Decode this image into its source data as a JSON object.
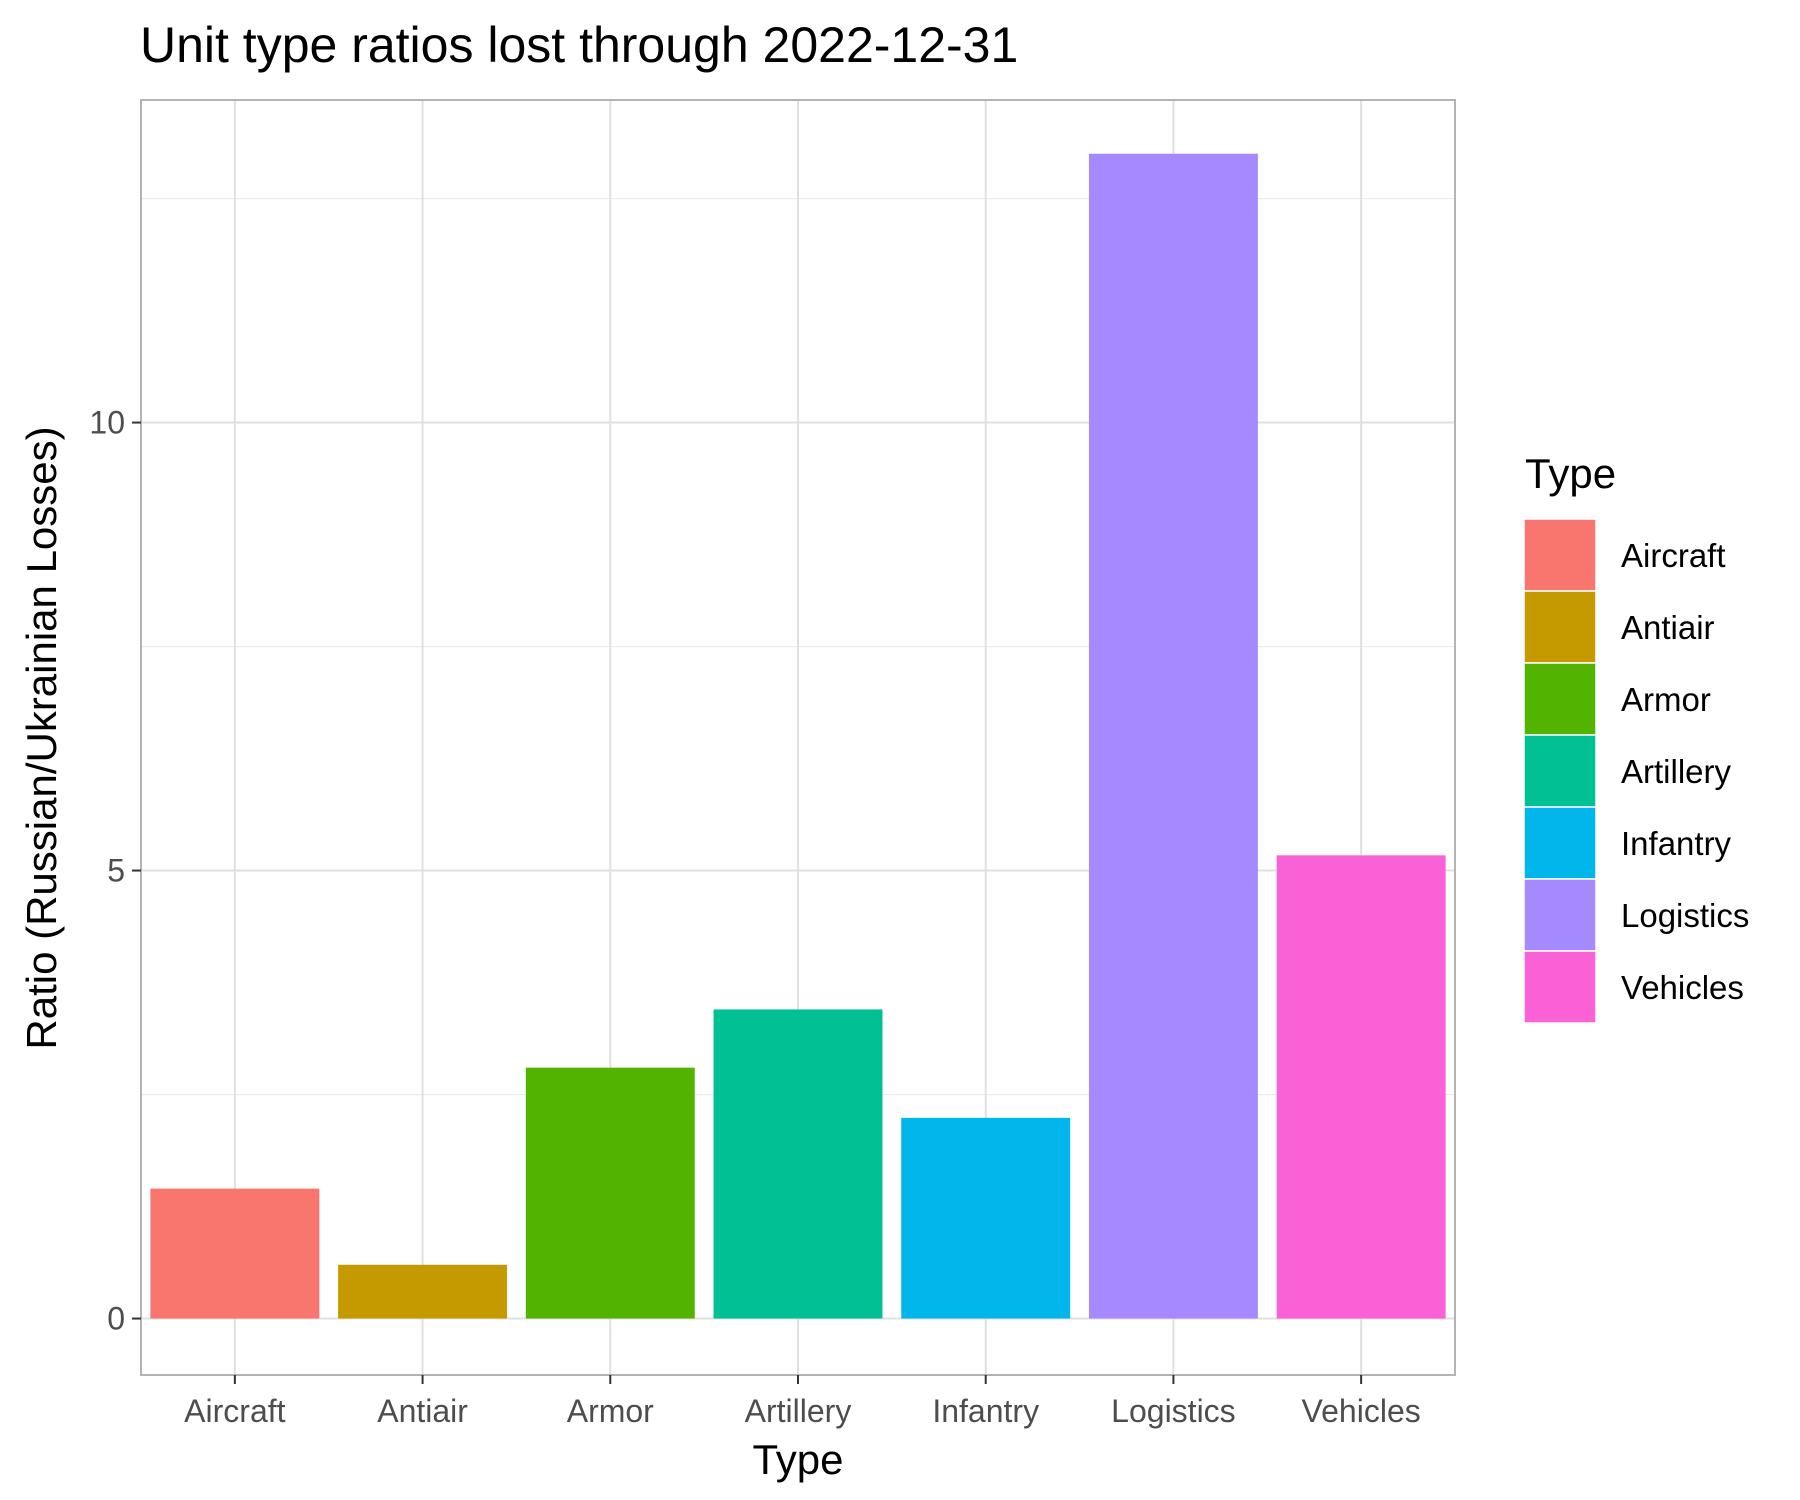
{
  "chart_data": {
    "type": "bar",
    "title": "Unit type ratios lost through 2022-12-31",
    "xlabel": "Type",
    "ylabel": "Ratio (Russian/Ukrainian Losses)",
    "categories": [
      "Aircraft",
      "Antiair",
      "Armor",
      "Artillery",
      "Infantry",
      "Logistics",
      "Vehicles"
    ],
    "values": [
      1.45,
      0.6,
      2.8,
      3.45,
      2.24,
      13.0,
      5.17
    ],
    "colors": [
      "#F8766D",
      "#C49A00",
      "#53B400",
      "#00C094",
      "#00B6EB",
      "#A58AFF",
      "#FB61D7"
    ],
    "ylim": [
      -0.63,
      13.6
    ],
    "y_ticks": [
      0,
      5,
      10
    ],
    "y_minor_ticks": [
      2.5,
      7.5,
      12.5
    ],
    "grid": true,
    "legend": {
      "title": "Type",
      "position": "right"
    }
  }
}
